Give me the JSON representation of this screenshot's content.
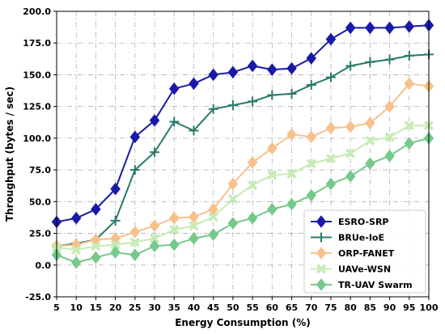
{
  "chart_data": {
    "type": "line",
    "title": "",
    "xlabel": "Energy Consumption (%)",
    "ylabel": "Throughput (bytes / sec)",
    "xlim": [
      5,
      100
    ],
    "ylim": [
      -25,
      200
    ],
    "xticks": [
      5,
      10,
      15,
      20,
      25,
      30,
      35,
      40,
      45,
      50,
      55,
      60,
      65,
      70,
      75,
      80,
      85,
      90,
      95,
      100
    ],
    "yticks": [
      -25,
      0,
      25,
      50,
      75,
      100,
      125,
      150,
      175,
      200
    ],
    "ytick_labels": [
      "-25.0",
      "0.0",
      "25.0",
      "50.0",
      "75.0",
      "100.0",
      "125.0",
      "150.0",
      "175.0",
      "200.0"
    ],
    "grid": true,
    "legend_position": "lower-right",
    "x": [
      5,
      10,
      15,
      20,
      25,
      30,
      35,
      40,
      45,
      50,
      55,
      60,
      65,
      70,
      75,
      80,
      85,
      90,
      95,
      100
    ],
    "series": [
      {
        "name": "ESRO-SRP",
        "color": "#1a1aa8",
        "marker": "diamond",
        "values": [
          34,
          37,
          44,
          60,
          101,
          114,
          139,
          143,
          150,
          152,
          157,
          154,
          155,
          163,
          178,
          187,
          187,
          187,
          188,
          189
        ]
      },
      {
        "name": "BRUe-IoE",
        "color": "#2a7a6a",
        "marker": "plus",
        "values": [
          15,
          17,
          20,
          35,
          75,
          89,
          113,
          106,
          123,
          126,
          129,
          134,
          135,
          142,
          148,
          157,
          160,
          162,
          165,
          166
        ]
      },
      {
        "name": "ORP-FANET",
        "color": "#f7c08c",
        "marker": "diamond",
        "values": [
          15,
          16,
          20,
          21,
          26,
          31,
          37,
          38,
          44,
          64,
          81,
          92,
          103,
          101,
          108,
          109,
          112,
          125,
          143,
          141
        ]
      },
      {
        "name": "UAVe-WSN",
        "color": "#c6ebb4",
        "marker": "cross",
        "values": [
          14,
          12,
          15,
          16,
          18,
          21,
          28,
          31,
          38,
          52,
          63,
          71,
          72,
          80,
          84,
          88,
          98,
          101,
          110,
          110
        ]
      },
      {
        "name": "TR-UAV Swarm",
        "color": "#76c98a",
        "marker": "diamond",
        "values": [
          8,
          2,
          6,
          10,
          8,
          15,
          16,
          21,
          24,
          33,
          37,
          44,
          48,
          55,
          64,
          70,
          80,
          86,
          96,
          100
        ]
      }
    ]
  }
}
